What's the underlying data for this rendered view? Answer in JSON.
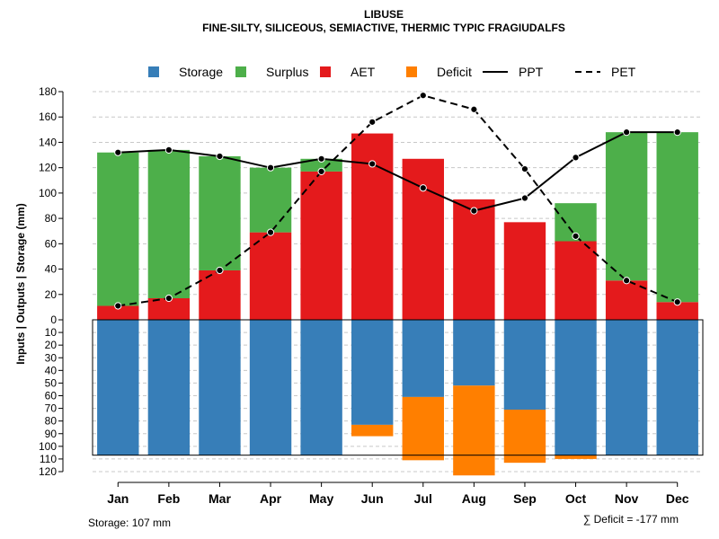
{
  "chart_data": {
    "type": "bar",
    "title": "LIBUSE",
    "subtitle": "FINE-SILTY, SILICEOUS, SEMIACTIVE, THERMIC TYPIC FRAGIUDALFS",
    "ylabel": "Inputs | Outputs | Storage    (mm)",
    "categories": [
      "Jan",
      "Feb",
      "Mar",
      "Apr",
      "May",
      "Jun",
      "Jul",
      "Aug",
      "Sep",
      "Oct",
      "Nov",
      "Dec"
    ],
    "upper_ylim": [
      0,
      180
    ],
    "upper_ticks": [
      "0",
      "20",
      "40",
      "60",
      "80",
      "100",
      "120",
      "140",
      "160",
      "180"
    ],
    "lower_ylim": [
      0,
      120
    ],
    "lower_ticks": [
      "10",
      "20",
      "30",
      "40",
      "50",
      "60",
      "70",
      "80",
      "90",
      "100",
      "110",
      "120"
    ],
    "storage_capacity": 107,
    "series": [
      {
        "name": "AET",
        "color": "#E41A1C",
        "values": [
          11,
          17,
          39,
          69,
          117,
          147,
          127,
          95,
          77,
          62,
          31,
          14
        ]
      },
      {
        "name": "Surplus",
        "color": "#4DAF4A",
        "values": [
          121,
          117,
          90,
          51,
          10,
          0,
          0,
          0,
          0,
          30,
          117,
          134
        ]
      },
      {
        "name": "Storage",
        "color": "#377EB8",
        "values": [
          107,
          107,
          107,
          107,
          107,
          83,
          61,
          52,
          71,
          107,
          107,
          107
        ]
      },
      {
        "name": "Deficit",
        "color": "#FF7F00",
        "values": [
          0,
          0,
          0,
          0,
          0,
          9,
          50,
          71,
          42,
          3,
          0,
          0
        ]
      },
      {
        "name": "PPT",
        "color": "#000000",
        "values": [
          132,
          134,
          129,
          120,
          127,
          123,
          104,
          86,
          96,
          128,
          148,
          148
        ]
      },
      {
        "name": "PET",
        "color": "#000000",
        "values": [
          11,
          17,
          39,
          69,
          117,
          156,
          177,
          166,
          119,
          66,
          31,
          14
        ]
      }
    ],
    "legend": [
      {
        "label": "Storage",
        "symbol": "square",
        "color": "#377EB8"
      },
      {
        "label": "Surplus",
        "symbol": "square",
        "color": "#4DAF4A"
      },
      {
        "label": "AET",
        "symbol": "square",
        "color": "#E41A1C"
      },
      {
        "label": "Deficit",
        "symbol": "square",
        "color": "#FF7F00"
      },
      {
        "label": "PPT",
        "symbol": "solid-line",
        "color": "#000000"
      },
      {
        "label": "PET",
        "symbol": "dashed-line",
        "color": "#000000"
      }
    ],
    "storage_note": "Storage: 107 mm",
    "deficit_note": "∑ Deficit = -177 mm"
  }
}
